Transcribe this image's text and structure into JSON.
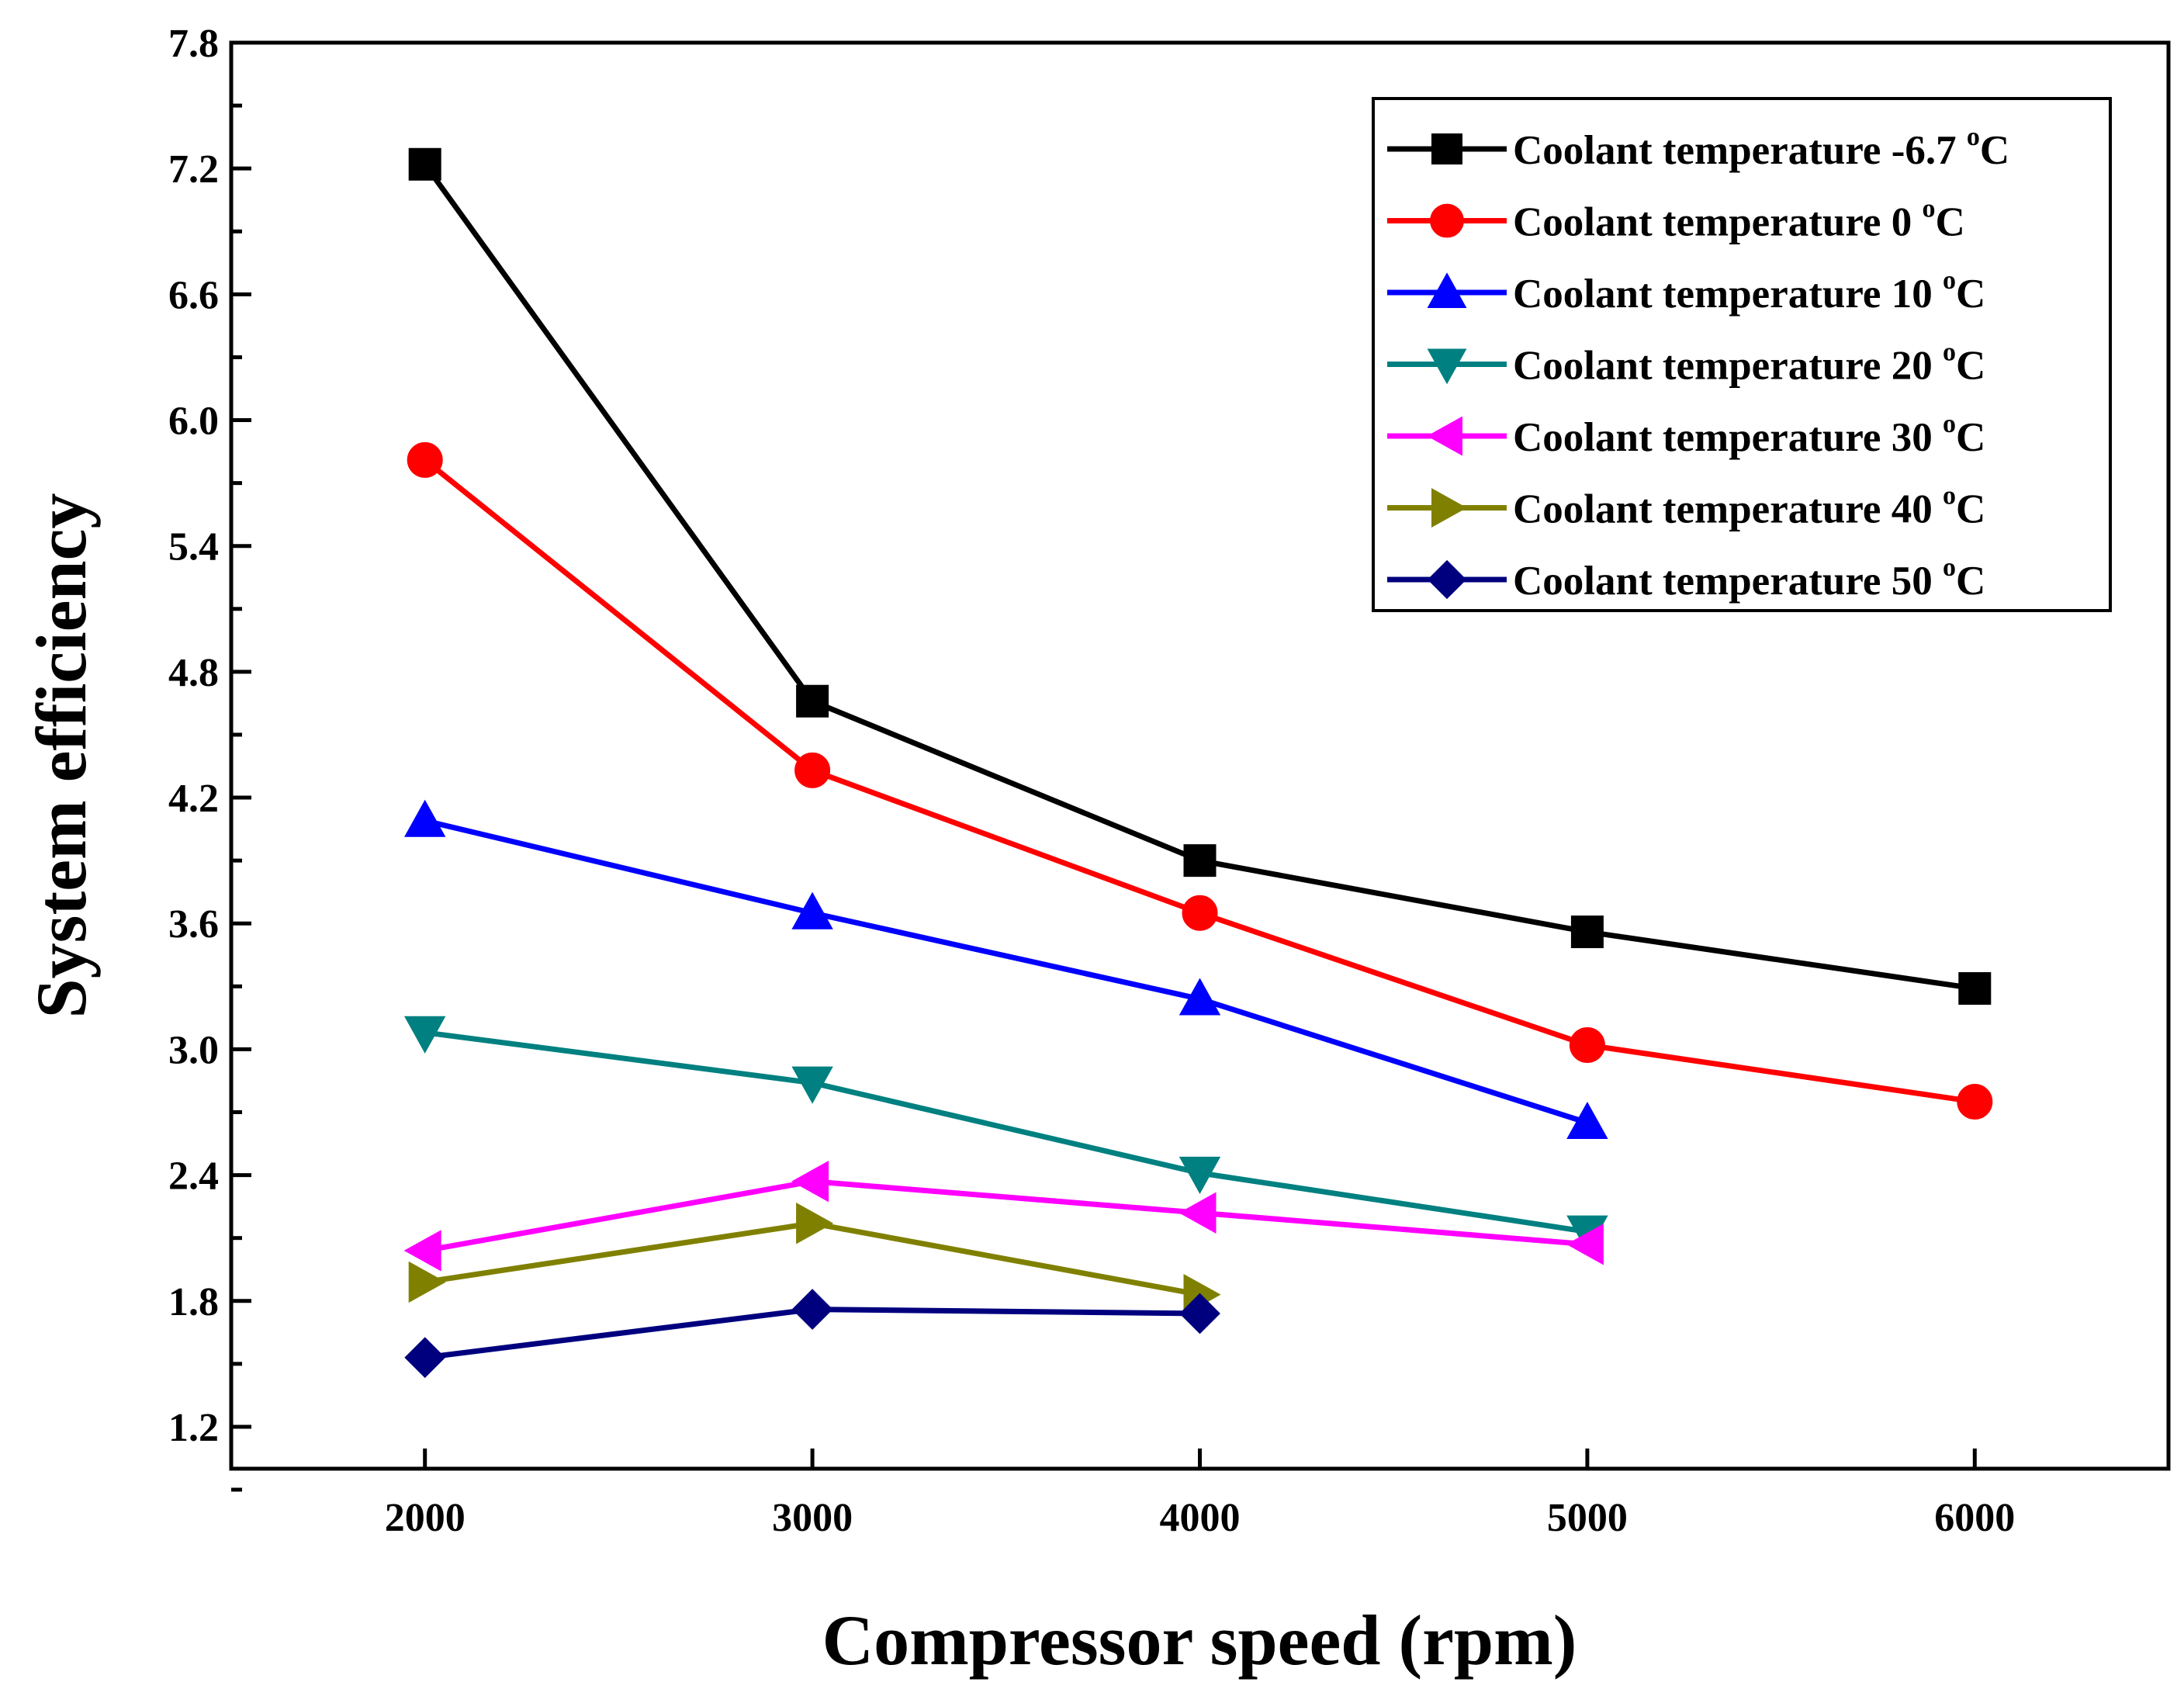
{
  "chart_data": {
    "type": "line",
    "xlabel": "Compressor speed (rpm)",
    "ylabel": "System efficiency",
    "xlim": [
      1500,
      6500
    ],
    "ylim": [
      1.0,
      7.8
    ],
    "xticks": [
      2000,
      3000,
      4000,
      5000,
      6000
    ],
    "yticks": [
      1.2,
      1.8,
      2.4,
      3.0,
      3.6,
      4.2,
      4.8,
      5.4,
      6.0,
      6.6,
      7.2,
      7.8
    ],
    "ytick_labels": [
      "1.2",
      "1.8",
      "2.4",
      "3.0",
      "3.6",
      "4.2",
      "4.8",
      "5.4",
      "6.0",
      "6.6",
      "7.2",
      "7.8"
    ],
    "grid": false,
    "legend_position": "top-right",
    "series": [
      {
        "name": "Coolant temperature -6.7 ",
        "unit": "C",
        "sup": "o",
        "color": "#000000",
        "marker": "square",
        "x": [
          2000,
          3000,
          4000,
          5000,
          6000
        ],
        "y": [
          7.22,
          4.66,
          3.9,
          3.56,
          3.29
        ]
      },
      {
        "name": "Coolant temperature 0 ",
        "unit": "C",
        "sup": "o",
        "color": "#ff0000",
        "marker": "circle",
        "x": [
          2000,
          3000,
          4000,
          5000,
          6000
        ],
        "y": [
          5.81,
          4.33,
          3.65,
          3.02,
          2.75
        ]
      },
      {
        "name": "Coolant temperature 10 ",
        "unit": "C",
        "sup": "o",
        "color": "#0000ff",
        "marker": "triangle-up",
        "x": [
          2000,
          3000,
          4000,
          5000
        ],
        "y": [
          4.09,
          3.65,
          3.24,
          2.65
        ]
      },
      {
        "name": "Coolant temperature 20 ",
        "unit": "C",
        "sup": "o",
        "color": "#008080",
        "marker": "triangle-down",
        "x": [
          2000,
          3000,
          4000,
          5000
        ],
        "y": [
          3.08,
          2.84,
          2.41,
          2.13
        ]
      },
      {
        "name": "Coolant temperature 30 ",
        "unit": "C",
        "sup": "o",
        "color": "#ff00ff",
        "marker": "triangle-left",
        "x": [
          2000,
          3000,
          4000,
          5000
        ],
        "y": [
          2.04,
          2.37,
          2.22,
          2.07
        ]
      },
      {
        "name": "Coolant temperature 40 ",
        "unit": "C",
        "sup": "o",
        "color": "#808000",
        "marker": "triangle-right",
        "x": [
          2000,
          3000,
          4000
        ],
        "y": [
          1.89,
          2.17,
          1.83
        ]
      },
      {
        "name": "Coolant temperature 50 ",
        "unit": "C",
        "sup": "o",
        "color": "#00007f",
        "marker": "diamond",
        "x": [
          2000,
          3000,
          4000
        ],
        "y": [
          1.53,
          1.76,
          1.74
        ]
      }
    ]
  }
}
